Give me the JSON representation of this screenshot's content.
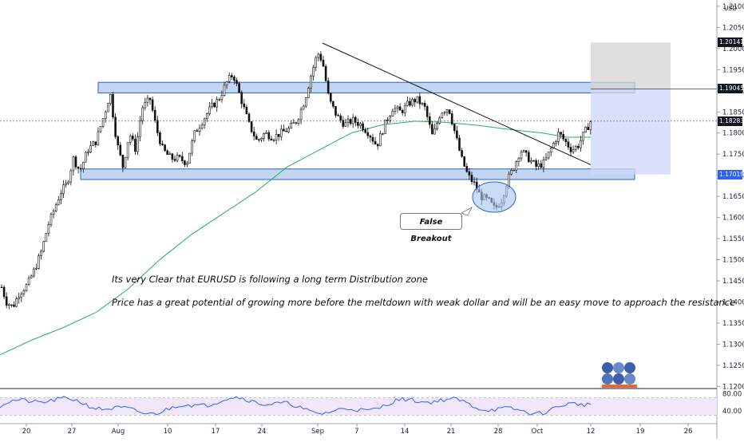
{
  "chart_data": {
    "type": "candlestick",
    "instrument_currency": "USD",
    "price_axis": {
      "ylim": [
        1.1195,
        1.2115
      ],
      "ticks": [
        "1.21000",
        "1.20500",
        "1.20000",
        "1.19500",
        "1.19000",
        "1.18500",
        "1.18000",
        "1.17500",
        "1.17000",
        "1.16500",
        "1.16000",
        "1.15500",
        "1.15000",
        "1.14500",
        "1.14000",
        "1.13500",
        "1.13000",
        "1.12500",
        "1.12000"
      ]
    },
    "time_axis": {
      "ticks": [
        "20",
        "27",
        "Aug",
        "10",
        "17",
        "24",
        "Sep",
        "7",
        "14",
        "21",
        "28",
        "Oct",
        "12",
        "19",
        "26"
      ]
    },
    "price_tags": [
      {
        "label": "1.20141",
        "value": 1.20141,
        "color": "#131722"
      },
      {
        "label": "1.19045",
        "value": 1.19045,
        "color": "#131722"
      },
      {
        "label": "1.18283",
        "value": 1.18283,
        "color": "#131722"
      },
      {
        "label": "1.17019",
        "value": 1.17019,
        "color": "#2962ff"
      }
    ],
    "zones": [
      {
        "name": "Resistance",
        "from": 1.1895,
        "to": 1.192
      },
      {
        "name": "Support",
        "from": 1.169,
        "to": 1.1715
      }
    ],
    "moving_average": {
      "name": "MA"
    },
    "rsi": {
      "ticks": [
        "80.00",
        "40.00"
      ],
      "upper": 70,
      "lower": 30
    }
  },
  "annotations": {
    "callout": "False Breakout",
    "line1": "Its very Clear that EURUSD is following a long term Distribution zone",
    "line2": "Price has a great potential of growing more before the meltdown with weak dollar and will be an easy move to approach the resistance"
  },
  "colors": {
    "zone_fill": "#a8c4f0",
    "zone_stroke": "#2a62c9",
    "ma": "#22b455",
    "rsi_line": "#2962ff",
    "rsi_band": "#f2e6fb",
    "candle": "#111111"
  }
}
